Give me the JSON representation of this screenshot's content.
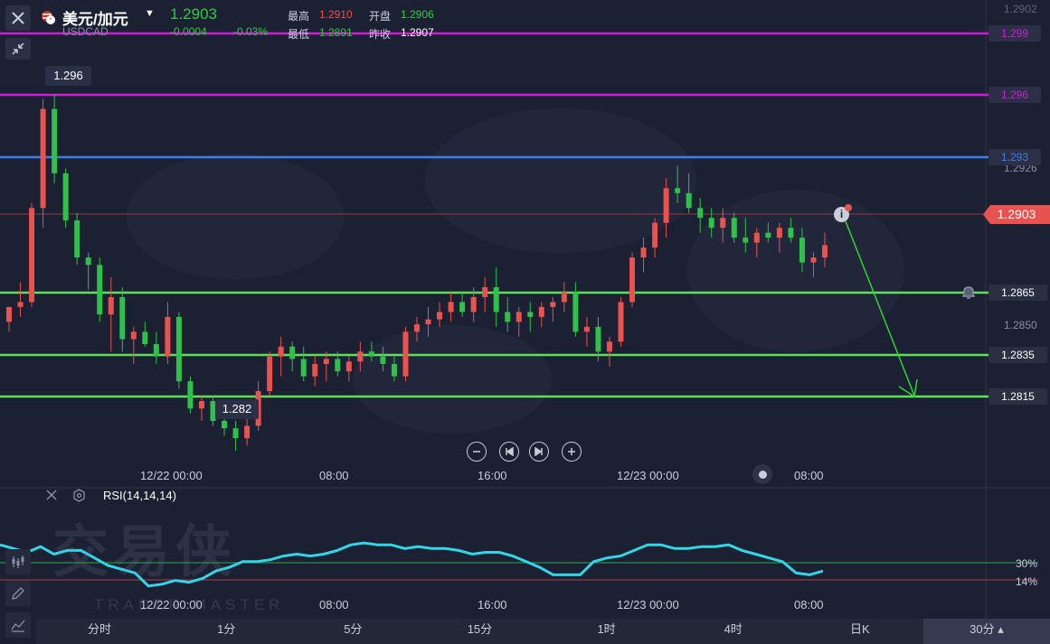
{
  "header": {
    "symbol_name": "美元/加元",
    "symbol_code": "USDCAD",
    "last_price": "1.2903",
    "change": "-0.0004",
    "change_pct": "-0.03%",
    "high_label": "最高",
    "high_value": "1.2910",
    "open_label": "开盘",
    "open_value": "1.2906",
    "low_label": "最低",
    "low_value": "1.2891",
    "prev_close_label": "昨收",
    "prev_close_value": "1.2907"
  },
  "price_axis": {
    "top_tick": "1.2902",
    "tick_1": "1.2926",
    "tick_2": "1.2850",
    "current_tag": "1.2903"
  },
  "levels": [
    {
      "label": "1.299",
      "color": "#d01cd6"
    },
    {
      "label": "1.296",
      "color": "#d01cd6"
    },
    {
      "label": "1.293",
      "color": "#3d7fe8"
    },
    {
      "label": "1.2865",
      "color": "#5fe05a"
    },
    {
      "label": "1.2835",
      "color": "#5fe05a"
    },
    {
      "label": "1.2815",
      "color": "#5fe05a"
    }
  ],
  "annotations": {
    "high_marker": "1.296",
    "low_marker": "1.282"
  },
  "time_axis": {
    "main": [
      "12/22 00:00",
      "08:00",
      "16:00",
      "12/23 00:00",
      "08:00"
    ],
    "rsi": [
      "12/22 00:00",
      "08:00",
      "16:00",
      "12/23 00:00",
      "08:00"
    ]
  },
  "rsi": {
    "label": "RSI(14,14,14)",
    "level_30": "30%",
    "level_14": "14%"
  },
  "watermark": {
    "cn": "交易侠",
    "en": "TRADER MASTER"
  },
  "timeframes": [
    "分时",
    "1分",
    "5分",
    "15分",
    "1时",
    "4时",
    "日K",
    "30分 ▴"
  ],
  "colors": {
    "background": "#1c2033",
    "up": "#e8534f",
    "down": "#2ec24a",
    "rsi_line": "#33d6e6",
    "arrow": "#2ed432"
  },
  "chart_data": {
    "type": "candlestick",
    "symbol": "USDCAD",
    "ylim": [
      1.2805,
      1.3002
    ],
    "series": [
      {
        "name": "RSI(14,14,14)",
        "values": [
          47,
          45,
          43,
          46,
          42,
          44,
          44,
          40,
          36,
          34,
          32,
          25,
          26,
          28,
          27,
          29,
          33,
          35,
          38,
          38,
          39,
          41,
          42,
          41,
          42,
          44,
          47,
          48,
          47,
          47,
          45,
          46,
          45,
          45,
          44,
          42,
          43,
          43,
          41,
          38,
          35,
          31,
          31,
          31,
          38,
          40,
          41,
          44,
          47,
          47,
          45,
          45,
          46,
          46,
          47,
          44,
          42,
          40,
          38,
          32,
          31,
          33
        ]
      }
    ]
  }
}
